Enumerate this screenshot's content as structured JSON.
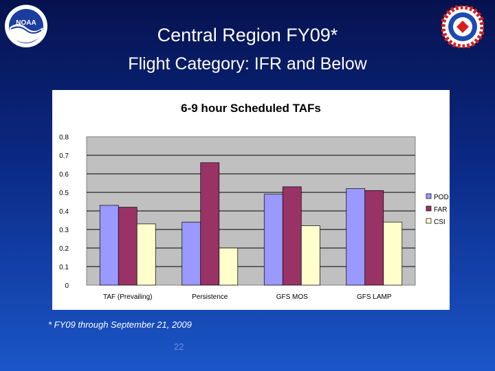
{
  "header": {
    "title_line1": "Central Region FY09*",
    "title_line2": "Flight Category: IFR and Below"
  },
  "logos": {
    "left_text": "NOAA"
  },
  "footnote": "* FY09 through September 21, 2009",
  "page_number": "22",
  "colors": {
    "pod": "#9999ff",
    "far": "#993366",
    "csi": "#ffffcc",
    "plot_bg": "#c0c0c0"
  },
  "chart_data": {
    "type": "bar",
    "title": "6-9 hour Scheduled TAFs",
    "categories": [
      "TAF (Prevailing)",
      "Persistence",
      "GFS MOS",
      "GFS LAMP"
    ],
    "series": [
      {
        "name": "POD",
        "values": [
          0.43,
          0.34,
          0.49,
          0.52
        ]
      },
      {
        "name": "FAR",
        "values": [
          0.42,
          0.66,
          0.53,
          0.51
        ]
      },
      {
        "name": "CSI",
        "values": [
          0.33,
          0.2,
          0.32,
          0.34
        ]
      }
    ],
    "ylim": [
      0,
      0.8
    ],
    "yticks": [
      "0",
      "0.1",
      "0.2",
      "0.3",
      "0.4",
      "0.5",
      "0.6",
      "0.7",
      "0.8"
    ],
    "ytick_values": [
      0,
      0.1,
      0.2,
      0.3,
      0.4,
      0.5,
      0.6,
      0.7,
      0.8
    ],
    "xlabel": "",
    "ylabel": "",
    "grid": true,
    "legend_position": "right"
  }
}
